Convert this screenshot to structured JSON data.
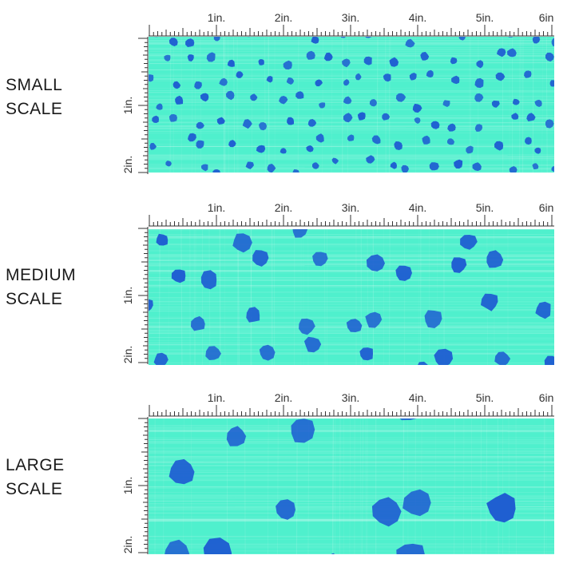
{
  "scales": [
    {
      "label_line1": "SMALL",
      "label_line2": "SCALE"
    },
    {
      "label_line1": "MEDIUM",
      "label_line2": "SCALE"
    },
    {
      "label_line1": "LARGE",
      "label_line2": "SCALE"
    }
  ],
  "ruler": {
    "top_ticks": [
      "1in.",
      "2in.",
      "3in.",
      "4in.",
      "5in.",
      "6in."
    ],
    "left_ticks": [
      "1in.",
      "2in."
    ]
  },
  "colors": {
    "fabric": "#4ff0cd",
    "dot": "#1f5fd1",
    "ruler": "#333333"
  }
}
